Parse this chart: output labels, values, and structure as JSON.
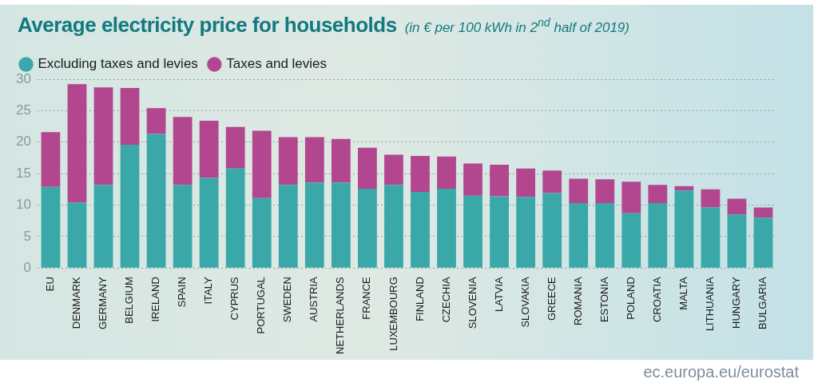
{
  "chart_data": {
    "type": "bar",
    "title": "Average electricity price for households",
    "subtitle": "(in € per 100 kWh in 2$^{nd}$ half of 2019)",
    "categories": [
      "EU",
      "DENMARK",
      "GERMANY",
      "BELGIUM",
      "IRELAND",
      "SPAIN",
      "ITALY",
      "CYPRUS",
      "PORTUGAL",
      "SWEDEN",
      "AUSTRIA",
      "NETHERLANDS",
      "FRANCE",
      "LUXEMBOURG",
      "FINLAND",
      "CZECHIA",
      "SLOVENIA",
      "LATVIA",
      "SLOVAKIA",
      "GREECE",
      "ROMANIA",
      "ESTONIA",
      "POLAND",
      "CROATIA",
      "MALTA",
      "LITHUANIA",
      "HUNGARY",
      "BULGARIA"
    ],
    "series": [
      {
        "name": "Excluding taxes and levies",
        "color": "#3aa8a8",
        "values": [
          12.9,
          10.4,
          13.2,
          19.6,
          21.3,
          13.2,
          14.3,
          15.8,
          11.1,
          13.2,
          13.6,
          13.6,
          12.6,
          13.2,
          12.1,
          12.6,
          11.5,
          11.4,
          11.3,
          11.9,
          10.3,
          10.3,
          8.7,
          10.3,
          12.3,
          9.6,
          8.5,
          8.0
        ]
      },
      {
        "name": "Taxes and levies",
        "color": "#b3478f",
        "values": [
          8.7,
          18.8,
          15.5,
          9.0,
          4.1,
          10.8,
          9.1,
          6.6,
          10.7,
          7.6,
          7.2,
          6.9,
          6.5,
          4.8,
          5.7,
          5.1,
          5.1,
          5.0,
          4.5,
          3.6,
          3.9,
          3.8,
          5.0,
          2.9,
          0.7,
          2.9,
          2.5,
          1.6
        ]
      }
    ],
    "stacked": true,
    "ylim": [
      0,
      30
    ],
    "yticks": [
      0,
      5,
      10,
      15,
      20,
      25,
      30
    ],
    "grid": "y",
    "legend": "top left",
    "annotations": [
      "ec.europa.eu/eurostat"
    ]
  }
}
